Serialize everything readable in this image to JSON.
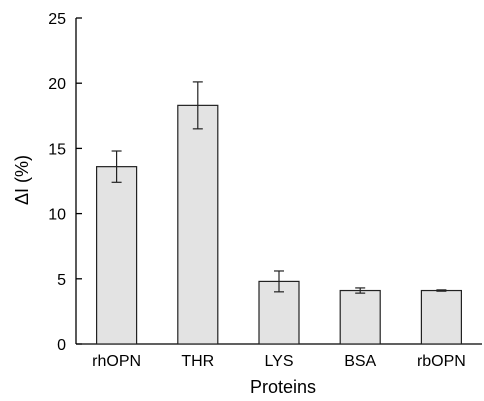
{
  "chart_data": {
    "type": "bar",
    "categories": [
      "rhOPN",
      "THR",
      "LYS",
      "BSA",
      "rbOPN"
    ],
    "values": [
      13.6,
      18.3,
      4.8,
      4.1,
      4.1
    ],
    "errors": [
      1.2,
      1.8,
      0.8,
      0.2,
      0.05
    ],
    "xlabel": "Proteins",
    "ylabel": "ΔI (%)",
    "ylim": [
      0,
      25
    ],
    "yticks": [
      0,
      5,
      10,
      15,
      20,
      25
    ],
    "grid": false,
    "colors": {
      "bar_fill": "#e3e3e3",
      "bar_stroke": "#222222",
      "axis": "#000000"
    }
  }
}
